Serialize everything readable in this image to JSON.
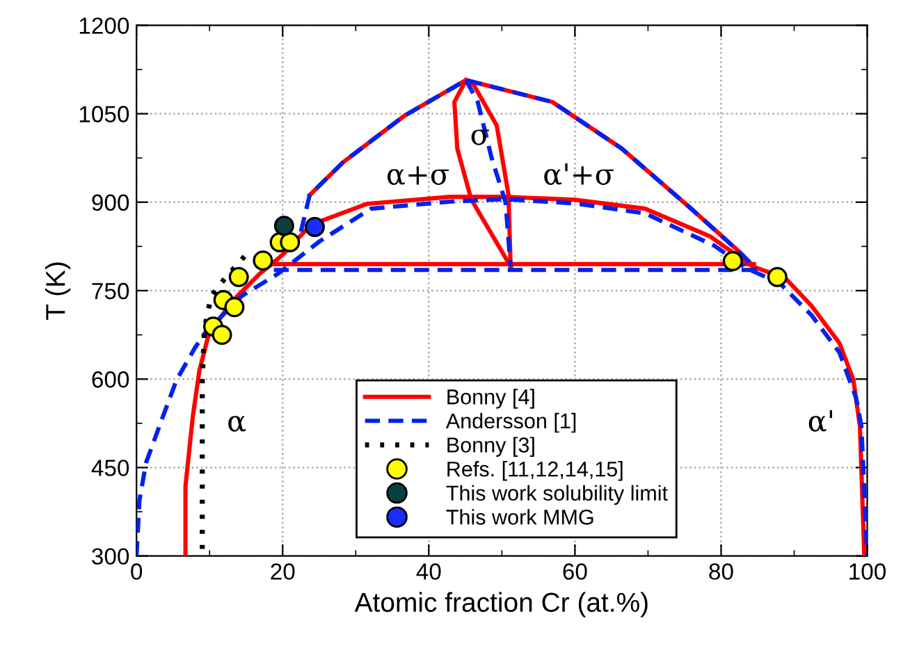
{
  "chart_data": {
    "type": "line",
    "xlabel": "Atomic fraction Cr (at.%)",
    "ylabel": "T (K)",
    "xlim": [
      0,
      100
    ],
    "xticks": [
      0,
      20,
      40,
      60,
      80,
      100
    ],
    "ylim": [
      300,
      1200
    ],
    "yticks": [
      300,
      450,
      600,
      750,
      900,
      1050,
      1200
    ],
    "grid": true,
    "legend": "bottom",
    "series": [
      {
        "name": "Bonny [4]",
        "color": "#ff0000",
        "line_style": "solid",
        "x": [
          6.7,
          6.7,
          7.7,
          8.6,
          9.9,
          13.1,
          16.9,
          18.5,
          20.1,
          23.9,
          31.5,
          42.9,
          50.5,
          60,
          69.6,
          78.5,
          84.3,
          88.8,
          92.4,
          96.2,
          98.1,
          99.0,
          99.6
        ],
        "values": [
          300,
          418,
          536,
          614,
          677,
          732,
          779,
          795,
          812,
          862,
          897,
          909,
          909,
          904,
          889,
          842,
          791,
          771,
          724,
          661,
          599,
          520,
          300
        ]
      },
      {
        "color": "#ff0000",
        "line_style": "solid",
        "x": [
          18.5,
          84.5
        ],
        "values": [
          795,
          795
        ]
      },
      {
        "color": "#ff0000",
        "line_style": "solid",
        "x": [
          23.7,
          28.3,
          36.6,
          45.1,
          56.9,
          66.4,
          75.9,
          82.3,
          84.8
        ],
        "values": [
          912,
          968,
          1046,
          1107,
          1070,
          991,
          889,
          818,
          787
        ]
      },
      {
        "color": "#ff0000",
        "line_style": "solid",
        "x": [
          45.1,
          43.5,
          43.9,
          45.8,
          51.2
        ],
        "values": [
          1107,
          1070,
          991,
          905,
          791
        ]
      },
      {
        "color": "#ff0000",
        "line_style": "solid",
        "x": [
          45.1,
          46.1,
          49.3,
          50.9,
          51.2
        ],
        "values": [
          1107,
          1100,
          1030,
          913,
          791
        ]
      },
      {
        "name": "Andersson [1]",
        "color": "#0022ee",
        "line_style": "dashed",
        "x": [
          0,
          0.4,
          1.3,
          3.6,
          5.5,
          8,
          9.3,
          14.3,
          19.4,
          25.1,
          32.1,
          42.9,
          50.5,
          60,
          69.6,
          79.1,
          83.6,
          88,
          92.4,
          96.2,
          98.5,
          99.2,
          100
        ],
        "values": [
          300,
          394,
          458,
          536,
          599,
          653,
          677,
          740,
          779,
          834,
          889,
          901,
          905,
          898,
          881,
          826,
          787,
          763,
          708,
          645,
          567,
          520,
          300
        ]
      },
      {
        "color": "#0022ee",
        "line_style": "dashed",
        "x": [
          18.8,
          84.8
        ],
        "values": [
          785,
          785
        ]
      },
      {
        "color": "#0022ee",
        "line_style": "dashed",
        "x": [
          22.5,
          23.7,
          28.3,
          36.6,
          45.1,
          56.9,
          66.4,
          75.9,
          82.3,
          84.8
        ],
        "values": [
          850,
          912,
          968,
          1046,
          1107,
          1070,
          991,
          889,
          818,
          787
        ]
      },
      {
        "color": "#0022ee",
        "line_style": "dashed",
        "x": [
          45.1,
          46.7,
          48.6,
          50.5,
          51.2
        ],
        "values": [
          1107,
          1070,
          975,
          900,
          791
        ]
      },
      {
        "name": "Bonny [3]",
        "color": "#000000",
        "line_style": "dotted",
        "x": [
          9.0,
          9.0,
          9.0,
          9.3,
          10.2,
          12.1,
          15.0
        ],
        "values": [
          312,
          450,
          600,
          685,
          740,
          771,
          811
        ]
      },
      {
        "name": "Refs. [11,12,14,15]",
        "type": "scatter",
        "marker": "circle",
        "color": "#ffff00",
        "x": [
          10.5,
          11.7,
          11.9,
          13.4,
          14.0,
          17.3,
          19.6,
          21.0,
          81.6,
          87.7
        ],
        "values": [
          689,
          675,
          734,
          722,
          773,
          801,
          832,
          832,
          800,
          773
        ]
      },
      {
        "name": "This work solubility limit",
        "type": "scatter",
        "marker": "circle",
        "color": "#0b4040",
        "x": [
          20.2
        ],
        "values": [
          860
        ]
      },
      {
        "name": "This work MMG",
        "type": "scatter",
        "marker": "circle",
        "color": "#1a2cff",
        "x": [
          24.4
        ],
        "values": [
          858
        ]
      }
    ],
    "annotations": [
      "α+σ",
      "σ",
      "α'+σ",
      "α",
      "α'"
    ]
  }
}
